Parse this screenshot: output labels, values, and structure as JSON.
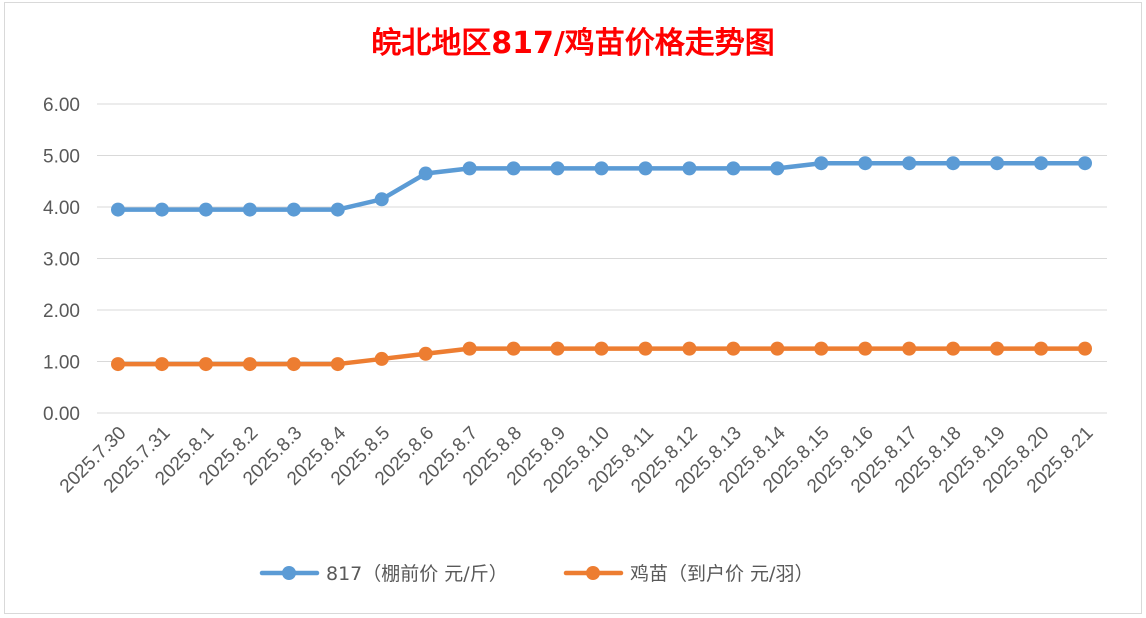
{
  "chart_data": {
    "type": "line",
    "title": "皖北地区817/鸡苗价格走势图",
    "categories": [
      "2025.7.30",
      "2025.7.31",
      "2025.8.1",
      "2025.8.2",
      "2025.8.3",
      "2025.8.4",
      "2025.8.5",
      "2025.8.6",
      "2025.8.7",
      "2025.8.8",
      "2025.8.9",
      "2025.8.10",
      "2025.8.11",
      "2025.8.12",
      "2025.8.13",
      "2025.8.14",
      "2025.8.15",
      "2025.8.16",
      "2025.8.17",
      "2025.8.18",
      "2025.8.19",
      "2025.8.20",
      "2025.8.21"
    ],
    "series": [
      {
        "name": "817（棚前价 元/斤）",
        "color": "#5B9BD5",
        "values": [
          3.95,
          3.95,
          3.95,
          3.95,
          3.95,
          3.95,
          4.15,
          4.65,
          4.75,
          4.75,
          4.75,
          4.75,
          4.75,
          4.75,
          4.75,
          4.75,
          4.85,
          4.85,
          4.85,
          4.85,
          4.85,
          4.85,
          4.85
        ]
      },
      {
        "name": "鸡苗（到户价 元/羽）",
        "color": "#ED7D31",
        "values": [
          0.95,
          0.95,
          0.95,
          0.95,
          0.95,
          0.95,
          1.05,
          1.15,
          1.25,
          1.25,
          1.25,
          1.25,
          1.25,
          1.25,
          1.25,
          1.25,
          1.25,
          1.25,
          1.25,
          1.25,
          1.25,
          1.25,
          1.25
        ]
      }
    ],
    "yticks": [
      "0.00",
      "1.00",
      "2.00",
      "3.00",
      "4.00",
      "5.00",
      "6.00"
    ],
    "ylim": [
      0,
      6
    ],
    "grid": true,
    "legend": "bottom",
    "title_color": "#FF0000",
    "axis_text_color": "#595959",
    "grid_color": "#d9d9d9"
  }
}
